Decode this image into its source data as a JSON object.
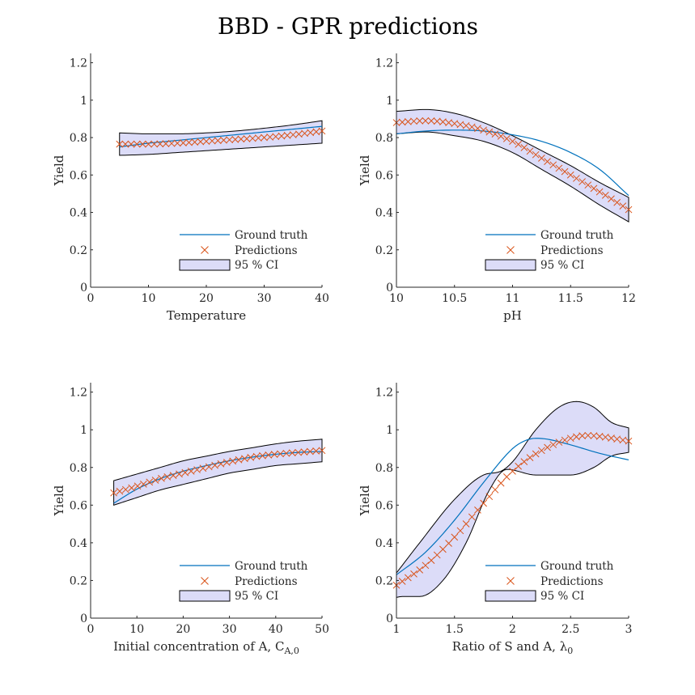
{
  "figure": {
    "title": "BBD - GPR predictions",
    "colors": {
      "ground_truth": "#0072BD",
      "predictions": "#D95319",
      "ci_fill": "#DCDCF8",
      "ci_edge": "#000000",
      "axis": "#262626"
    }
  },
  "legend_labels": {
    "ground_truth": "Ground truth",
    "predictions": "Predictions",
    "ci": "95 % CI"
  },
  "chart_data": [
    {
      "type": "line",
      "xlabel": "Temperature",
      "ylabel": "Yield",
      "xlim": [
        0,
        40
      ],
      "ylim": [
        0,
        1.25
      ],
      "xticks": [
        0,
        10,
        20,
        30,
        40
      ],
      "xtick_labels": [
        "0",
        "10",
        "20",
        "30",
        "40"
      ],
      "yticks": [
        0,
        0.2,
        0.4,
        0.6,
        0.8,
        1,
        1.2
      ],
      "ytick_labels": [
        "0",
        "0.2",
        "0.4",
        "0.6",
        "0.8",
        "1",
        "1.2"
      ],
      "legend_position": "bottom-right",
      "ground_truth": {
        "x": [
          5,
          10,
          15,
          20,
          25,
          30,
          35,
          40
        ],
        "y": [
          0.75,
          0.77,
          0.785,
          0.8,
          0.815,
          0.83,
          0.845,
          0.86
        ]
      },
      "predictions": {
        "x_range": [
          5,
          40
        ],
        "count": 36,
        "x": [
          5,
          10,
          15,
          20,
          25,
          30,
          35,
          40
        ],
        "y": [
          0.765,
          0.765,
          0.77,
          0.78,
          0.79,
          0.8,
          0.815,
          0.835
        ]
      },
      "ci_upper": {
        "x": [
          5,
          10,
          15,
          20,
          25,
          30,
          35,
          40
        ],
        "y": [
          0.825,
          0.82,
          0.82,
          0.825,
          0.835,
          0.85,
          0.868,
          0.89
        ]
      },
      "ci_lower": {
        "x": [
          5,
          10,
          15,
          20,
          25,
          30,
          35,
          40
        ],
        "y": [
          0.705,
          0.71,
          0.72,
          0.73,
          0.74,
          0.75,
          0.76,
          0.77
        ]
      }
    },
    {
      "type": "line",
      "xlabel": "pH",
      "ylabel": "Yield",
      "xlim": [
        10,
        12
      ],
      "ylim": [
        0,
        1.25
      ],
      "xticks": [
        10,
        10.5,
        11,
        11.5,
        12
      ],
      "xtick_labels": [
        "10",
        "10.5",
        "11",
        "11.5",
        "12"
      ],
      "yticks": [
        0,
        0.2,
        0.4,
        0.6,
        0.8,
        1,
        1.2
      ],
      "ytick_labels": [
        "0",
        "0.2",
        "0.4",
        "0.6",
        "0.8",
        "1",
        "1.2"
      ],
      "legend_position": "bottom-right",
      "ground_truth": {
        "x": [
          10,
          10.25,
          10.5,
          10.75,
          11,
          11.25,
          11.5,
          11.75,
          12
        ],
        "y": [
          0.82,
          0.835,
          0.84,
          0.835,
          0.815,
          0.78,
          0.72,
          0.63,
          0.49
        ]
      },
      "predictions": {
        "x_range": [
          10,
          12
        ],
        "count": 41,
        "x": [
          10,
          10.25,
          10.5,
          10.75,
          11,
          11.25,
          11.5,
          11.75,
          12
        ],
        "y": [
          0.88,
          0.89,
          0.875,
          0.84,
          0.78,
          0.69,
          0.6,
          0.51,
          0.415
        ]
      },
      "ci_upper": {
        "x": [
          10,
          10.25,
          10.5,
          10.75,
          11,
          11.25,
          11.5,
          11.75,
          12
        ],
        "y": [
          0.94,
          0.95,
          0.93,
          0.88,
          0.81,
          0.73,
          0.65,
          0.56,
          0.48
        ]
      },
      "ci_lower": {
        "x": [
          10,
          10.25,
          10.5,
          10.75,
          11,
          11.25,
          11.5,
          11.75,
          12
        ],
        "y": [
          0.82,
          0.83,
          0.81,
          0.78,
          0.72,
          0.63,
          0.54,
          0.44,
          0.35
        ]
      }
    },
    {
      "type": "line",
      "xlabel": "Initial concentration of A, C",
      "xlabel_subscript": "A,0",
      "ylabel": "Yield",
      "xlim": [
        0,
        50
      ],
      "ylim": [
        0,
        1.25
      ],
      "xticks": [
        0,
        10,
        20,
        30,
        40,
        50
      ],
      "xtick_labels": [
        "0",
        "10",
        "20",
        "30",
        "40",
        "50"
      ],
      "yticks": [
        0,
        0.2,
        0.4,
        0.6,
        0.8,
        1,
        1.2
      ],
      "ytick_labels": [
        "0",
        "0.2",
        "0.4",
        "0.6",
        "0.8",
        "1",
        "1.2"
      ],
      "legend_position": "bottom-right",
      "ground_truth": {
        "x": [
          5,
          10,
          15,
          20,
          25,
          30,
          35,
          40,
          45,
          50
        ],
        "y": [
          0.61,
          0.685,
          0.74,
          0.78,
          0.81,
          0.835,
          0.855,
          0.87,
          0.88,
          0.885
        ]
      },
      "predictions": {
        "x_range": [
          5,
          50
        ],
        "count": 36,
        "x": [
          5,
          10,
          15,
          20,
          25,
          30,
          35,
          40,
          45,
          50
        ],
        "y": [
          0.665,
          0.7,
          0.74,
          0.77,
          0.8,
          0.83,
          0.855,
          0.87,
          0.88,
          0.89
        ]
      },
      "ci_upper": {
        "x": [
          5,
          10,
          15,
          20,
          25,
          30,
          35,
          40,
          45,
          50
        ],
        "y": [
          0.73,
          0.765,
          0.8,
          0.835,
          0.86,
          0.885,
          0.905,
          0.925,
          0.94,
          0.95
        ]
      },
      "ci_lower": {
        "x": [
          5,
          10,
          15,
          20,
          25,
          30,
          35,
          40,
          45,
          50
        ],
        "y": [
          0.6,
          0.64,
          0.68,
          0.71,
          0.74,
          0.77,
          0.79,
          0.81,
          0.82,
          0.83
        ]
      }
    },
    {
      "type": "line",
      "xlabel": "Ratio of S and A, λ",
      "xlabel_subscript": "0",
      "ylabel": "Yield",
      "xlim": [
        1,
        3
      ],
      "ylim": [
        0,
        1.25
      ],
      "xticks": [
        1,
        1.5,
        2,
        2.5,
        3
      ],
      "xtick_labels": [
        "1",
        "1.5",
        "2",
        "2.5",
        "3"
      ],
      "yticks": [
        0,
        0.2,
        0.4,
        0.6,
        0.8,
        1,
        1.2
      ],
      "ytick_labels": [
        "0",
        "0.2",
        "0.4",
        "0.6",
        "0.8",
        "1",
        "1.2"
      ],
      "legend_position": "bottom-right",
      "ground_truth": {
        "x": [
          1,
          1.25,
          1.5,
          1.75,
          2,
          2.1,
          2.2,
          2.3,
          2.5,
          2.75,
          3
        ],
        "y": [
          0.23,
          0.35,
          0.52,
          0.72,
          0.9,
          0.94,
          0.955,
          0.95,
          0.92,
          0.875,
          0.84
        ]
      },
      "predictions": {
        "x_range": [
          1,
          3
        ],
        "count": 41,
        "x": [
          1,
          1.25,
          1.5,
          1.75,
          2,
          2.25,
          2.5,
          2.65,
          2.75,
          3
        ],
        "y": [
          0.175,
          0.28,
          0.43,
          0.61,
          0.78,
          0.89,
          0.955,
          0.97,
          0.965,
          0.94
        ]
      },
      "ci_upper": {
        "x": [
          1,
          1.2,
          1.5,
          1.75,
          1.9,
          2,
          2.2,
          2.4,
          2.55,
          2.7,
          2.85,
          3
        ],
        "y": [
          0.24,
          0.4,
          0.63,
          0.76,
          0.78,
          0.83,
          1.0,
          1.12,
          1.15,
          1.12,
          1.04,
          1.01
        ]
      },
      "ci_lower": {
        "x": [
          1,
          1.05,
          1.2,
          1.4,
          1.6,
          1.8,
          1.95,
          2.2,
          2.5,
          2.7,
          2.85,
          3
        ],
        "y": [
          0.11,
          0.115,
          0.115,
          0.2,
          0.4,
          0.68,
          0.79,
          0.76,
          0.76,
          0.8,
          0.86,
          0.88
        ]
      }
    }
  ]
}
